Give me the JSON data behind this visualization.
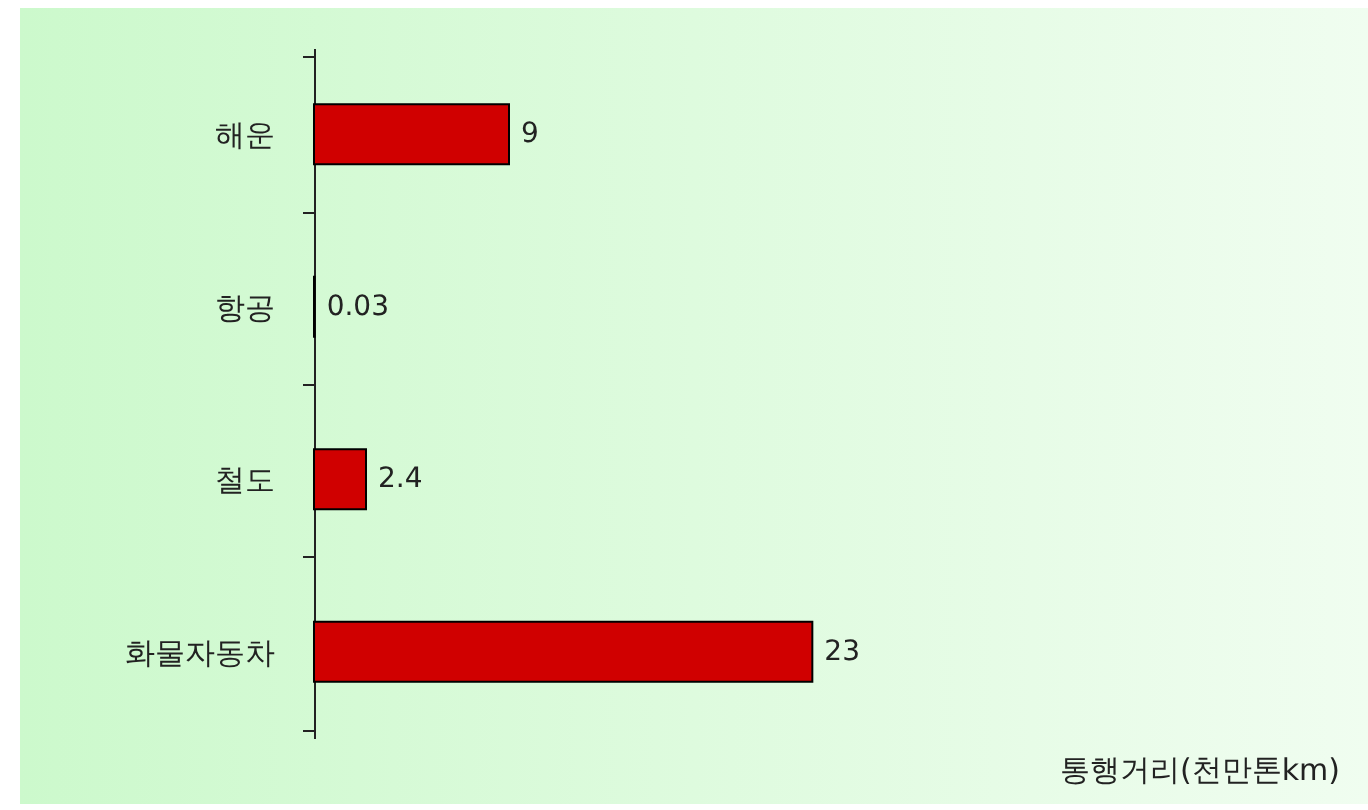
{
  "chart_data": {
    "type": "bar",
    "orientation": "horizontal",
    "annotations": [
      "통행거리(천만톤km)"
    ],
    "categories": [
      "해운",
      "항공",
      "철도",
      "화물자동차"
    ],
    "values": [
      9,
      0.03,
      2.4,
      23
    ],
    "color": "#d00000",
    "data_labels": true
  }
}
